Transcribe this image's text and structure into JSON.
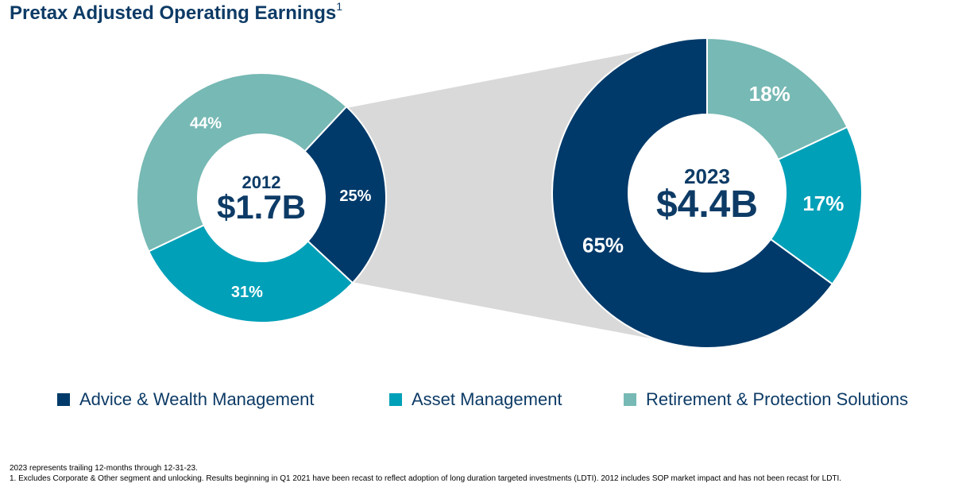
{
  "title": "Pretax Adjusted Operating Earnings",
  "title_superscript": "1",
  "chart_data": [
    {
      "type": "pie",
      "variant": "donut",
      "center_label_top": "2012",
      "center_label_value": "$1.7B",
      "categories": [
        "Advice & Wealth Management",
        "Asset Management",
        "Retirement & Protection Solutions"
      ],
      "values": [
        25,
        31,
        44
      ],
      "labels": [
        "25%",
        "31%",
        "44%"
      ]
    },
    {
      "type": "pie",
      "variant": "donut",
      "center_label_top": "2023",
      "center_label_value": "$4.4B",
      "categories": [
        "Retirement & Protection Solutions",
        "Asset Management",
        "Advice & Wealth Management"
      ],
      "values": [
        18,
        17,
        65
      ],
      "labels": [
        "18%",
        "17%",
        "65%"
      ]
    }
  ],
  "colors": {
    "Advice & Wealth Management": "#003a6a",
    "Asset Management": "#00a0b8",
    "Retirement & Protection Solutions": "#77b9b4",
    "connector": "#d9d9d9"
  },
  "legend": [
    {
      "label": "Advice & Wealth Management",
      "color": "#003a6a"
    },
    {
      "label": "Asset Management",
      "color": "#00a0b8"
    },
    {
      "label": "Retirement & Protection Solutions",
      "color": "#77b9b4"
    }
  ],
  "footnotes": [
    "2023 represents trailing 12-months through 12-31-23.",
    "1. Excludes Corporate & Other segment and unlocking. Results beginning in Q1 2021 have been recast to reflect adoption of long duration targeted investments (LDTI). 2012 includes SOP market impact and has not been recast for LDTI."
  ]
}
